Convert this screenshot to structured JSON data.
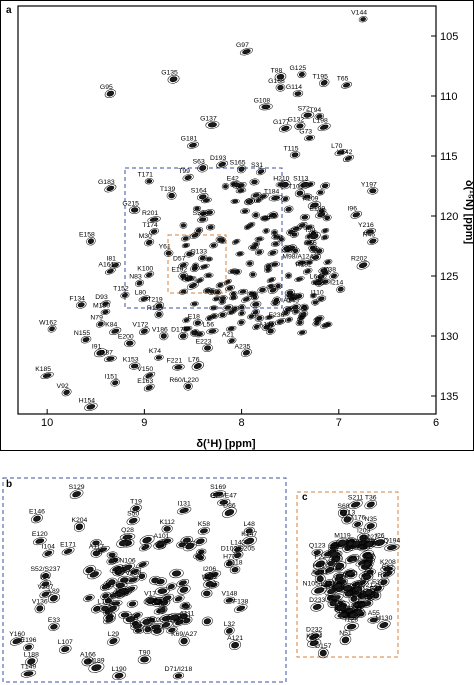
{
  "chart_data": [
    {
      "panel": "a",
      "type": "scatter",
      "xlabel": "δ(¹H) [ppm]",
      "ylabel": "δ(¹⁵N) [ppm]",
      "xlim": [
        10.3,
        6.0
      ],
      "ylim": [
        102.5,
        136.5
      ],
      "x_ticks": [
        10,
        9,
        8,
        7,
        6
      ],
      "y_ticks": [
        105,
        110,
        115,
        120,
        125,
        130,
        135
      ],
      "grid": false,
      "peaks": [
        {
          "label": "V144",
          "x": 6.75,
          "y": 103.6
        },
        {
          "label": "G97",
          "x": 7.95,
          "y": 106.3
        },
        {
          "label": "G125",
          "x": 7.38,
          "y": 108.2
        },
        {
          "label": "T88",
          "x": 7.6,
          "y": 108.4
        },
        {
          "label": "T195",
          "x": 7.15,
          "y": 108.9
        },
        {
          "label": "T65",
          "x": 6.92,
          "y": 109.1
        },
        {
          "label": "G135",
          "x": 8.7,
          "y": 108.6
        },
        {
          "label": "G168",
          "x": 7.6,
          "y": 109.3
        },
        {
          "label": "G114",
          "x": 7.42,
          "y": 109.8
        },
        {
          "label": "G95",
          "x": 9.35,
          "y": 109.8
        },
        {
          "label": "G108",
          "x": 7.75,
          "y": 110.9
        },
        {
          "label": "S72",
          "x": 7.32,
          "y": 111.6
        },
        {
          "label": "T94",
          "x": 7.2,
          "y": 111.7
        },
        {
          "label": "G137",
          "x": 8.3,
          "y": 112.4
        },
        {
          "label": "G177",
          "x": 7.55,
          "y": 112.7
        },
        {
          "label": "G132",
          "x": 7.4,
          "y": 112.5
        },
        {
          "label": "L198",
          "x": 7.15,
          "y": 112.6
        },
        {
          "label": "G73",
          "x": 7.3,
          "y": 113.5
        },
        {
          "label": "G181",
          "x": 8.5,
          "y": 114.1
        },
        {
          "label": "T115",
          "x": 7.45,
          "y": 114.9
        },
        {
          "label": "L70",
          "x": 6.98,
          "y": 114.7
        },
        {
          "label": "Y142",
          "x": 6.9,
          "y": 115.2
        },
        {
          "label": "D193",
          "x": 8.2,
          "y": 115.7
        },
        {
          "label": "S63",
          "x": 8.4,
          "y": 116.0
        },
        {
          "label": "S165",
          "x": 8.0,
          "y": 116.1
        },
        {
          "label": "S31",
          "x": 7.8,
          "y": 116.3
        },
        {
          "label": "T99",
          "x": 8.55,
          "y": 116.8
        },
        {
          "label": "T171",
          "x": 8.95,
          "y": 117.1
        },
        {
          "label": "E42",
          "x": 8.05,
          "y": 117.4
        },
        {
          "label": "H210",
          "x": 7.55,
          "y": 117.4
        },
        {
          "label": "S113",
          "x": 7.35,
          "y": 117.4
        },
        {
          "label": "G183",
          "x": 9.35,
          "y": 117.7
        },
        {
          "label": "T109",
          "x": 7.4,
          "y": 118.1
        },
        {
          "label": "Y197",
          "x": 6.65,
          "y": 117.9
        },
        {
          "label": "T139",
          "x": 8.72,
          "y": 118.3
        },
        {
          "label": "S164",
          "x": 8.4,
          "y": 118.4
        },
        {
          "label": "T184",
          "x": 7.65,
          "y": 118.5
        },
        {
          "label": "K209",
          "x": 7.25,
          "y": 119.1
        },
        {
          "label": "G215",
          "x": 9.1,
          "y": 119.5
        },
        {
          "label": "E199",
          "x": 7.18,
          "y": 119.9
        },
        {
          "label": "I96",
          "x": 6.82,
          "y": 119.9
        },
        {
          "label": "R201",
          "x": 8.9,
          "y": 120.3
        },
        {
          "label": "S53",
          "x": 8.4,
          "y": 120.3
        },
        {
          "label": "T174",
          "x": 8.9,
          "y": 121.3
        },
        {
          "label": "Y216",
          "x": 6.68,
          "y": 121.3
        },
        {
          "label": "I59",
          "x": 7.25,
          "y": 121.7
        },
        {
          "label": "M30",
          "x": 8.95,
          "y": 122.2
        },
        {
          "label": "R46",
          "x": 6.65,
          "y": 122.1
        },
        {
          "label": "E158",
          "x": 9.55,
          "y": 122.1
        },
        {
          "label": "Y61",
          "x": 8.75,
          "y": 123.1
        },
        {
          "label": "D66",
          "x": 7.25,
          "y": 122.8
        },
        {
          "label": "Q133",
          "x": 8.4,
          "y": 123.5
        },
        {
          "label": "M98/A124",
          "x": 7.38,
          "y": 123.9
        },
        {
          "label": "I81",
          "x": 9.3,
          "y": 124.1
        },
        {
          "label": "D57",
          "x": 8.6,
          "y": 124.1
        },
        {
          "label": "R202",
          "x": 6.75,
          "y": 124.1
        },
        {
          "label": "A161",
          "x": 9.35,
          "y": 124.6
        },
        {
          "label": "R182",
          "x": 7.32,
          "y": 124.6
        },
        {
          "label": "K100",
          "x": 8.95,
          "y": 124.9
        },
        {
          "label": "E192",
          "x": 8.6,
          "y": 125.0
        },
        {
          "label": "Y38",
          "x": 7.05,
          "y": 125.0
        },
        {
          "label": "N83",
          "x": 9.05,
          "y": 125.6
        },
        {
          "label": "F170",
          "x": 8.5,
          "y": 125.8
        },
        {
          "label": "L64",
          "x": 7.2,
          "y": 125.6
        },
        {
          "label": "I214",
          "x": 6.98,
          "y": 126.1
        },
        {
          "label": "T152",
          "x": 9.2,
          "y": 126.6
        },
        {
          "label": "L80",
          "x": 9.0,
          "y": 126.9
        },
        {
          "label": "I110",
          "x": 7.18,
          "y": 126.9
        },
        {
          "label": "F134",
          "x": 9.65,
          "y": 127.4
        },
        {
          "label": "D93",
          "x": 9.4,
          "y": 127.3
        },
        {
          "label": "T219",
          "x": 8.85,
          "y": 127.5
        },
        {
          "label": "A145",
          "x": 7.45,
          "y": 127.6
        },
        {
          "label": "M180",
          "x": 9.4,
          "y": 128.0
        },
        {
          "label": "R173",
          "x": 8.85,
          "y": 128.2
        },
        {
          "label": "E18",
          "x": 8.45,
          "y": 128.9
        },
        {
          "label": "E236",
          "x": 7.6,
          "y": 128.8
        },
        {
          "label": "N79",
          "x": 9.45,
          "y": 129.0
        },
        {
          "label": "L56",
          "x": 8.3,
          "y": 129.6
        },
        {
          "label": "A141",
          "x": 7.7,
          "y": 129.6
        },
        {
          "label": "W162",
          "x": 9.95,
          "y": 129.4
        },
        {
          "label": "K84",
          "x": 9.3,
          "y": 129.6
        },
        {
          "label": "V172",
          "x": 9.0,
          "y": 129.6
        },
        {
          "label": "V186",
          "x": 8.8,
          "y": 130.0
        },
        {
          "label": "D175",
          "x": 8.6,
          "y": 130.0
        },
        {
          "label": "A21",
          "x": 8.1,
          "y": 130.4
        },
        {
          "label": "N155",
          "x": 9.6,
          "y": 130.3
        },
        {
          "label": "E200",
          "x": 9.15,
          "y": 130.6
        },
        {
          "label": "E223",
          "x": 8.35,
          "y": 131.0
        },
        {
          "label": "A235",
          "x": 7.95,
          "y": 131.4
        },
        {
          "label": "I91",
          "x": 9.45,
          "y": 131.4
        },
        {
          "label": "I187",
          "x": 9.35,
          "y": 131.9
        },
        {
          "label": "K74",
          "x": 8.85,
          "y": 131.8
        },
        {
          "label": "K153",
          "x": 9.1,
          "y": 132.5
        },
        {
          "label": "F221",
          "x": 8.65,
          "y": 132.6
        },
        {
          "label": "L76",
          "x": 8.45,
          "y": 132.5
        },
        {
          "label": "V150",
          "x": 8.95,
          "y": 133.3
        },
        {
          "label": "K185",
          "x": 10.0,
          "y": 133.3
        },
        {
          "label": "I151",
          "x": 9.3,
          "y": 133.9
        },
        {
          "label": "R60/L220",
          "x": 8.55,
          "y": 134.2
        },
        {
          "label": "E163",
          "x": 8.95,
          "y": 134.3
        },
        {
          "label": "V92",
          "x": 9.8,
          "y": 134.7
        },
        {
          "label": "H154",
          "x": 9.55,
          "y": 135.9
        }
      ]
    },
    {
      "panel": "b",
      "type": "scatter",
      "peaks": [
        {
          "label": "S129",
          "x": 0.26,
          "y": 0.05
        },
        {
          "label": "S169",
          "x": 0.76,
          "y": 0.05
        },
        {
          "label": "E75/E47",
          "x": 0.78,
          "y": 0.09
        },
        {
          "label": "T19",
          "x": 0.47,
          "y": 0.12
        },
        {
          "label": "I131",
          "x": 0.64,
          "y": 0.13
        },
        {
          "label": "D86",
          "x": 0.8,
          "y": 0.14
        },
        {
          "label": "E146",
          "x": 0.12,
          "y": 0.17
        },
        {
          "label": "S50",
          "x": 0.46,
          "y": 0.18
        },
        {
          "label": "K204",
          "x": 0.27,
          "y": 0.21
        },
        {
          "label": "K112",
          "x": 0.58,
          "y": 0.22
        },
        {
          "label": "K58",
          "x": 0.71,
          "y": 0.23
        },
        {
          "label": "L48",
          "x": 0.87,
          "y": 0.23
        },
        {
          "label": "Q28",
          "x": 0.44,
          "y": 0.26
        },
        {
          "label": "E120",
          "x": 0.13,
          "y": 0.28
        },
        {
          "label": "A101",
          "x": 0.56,
          "y": 0.29
        },
        {
          "label": "K147",
          "x": 0.87,
          "y": 0.28
        },
        {
          "label": "E171",
          "x": 0.23,
          "y": 0.33
        },
        {
          "label": "L143",
          "x": 0.83,
          "y": 0.32
        },
        {
          "label": "I104",
          "x": 0.16,
          "y": 0.34
        },
        {
          "label": "A117",
          "x": 0.33,
          "y": 0.34
        },
        {
          "label": "D102/E205",
          "x": 0.83,
          "y": 0.35
        },
        {
          "label": "H77",
          "x": 0.8,
          "y": 0.39
        },
        {
          "label": "N106",
          "x": 0.44,
          "y": 0.41
        },
        {
          "label": "F118",
          "x": 0.82,
          "y": 0.42
        },
        {
          "label": "S52/S237",
          "x": 0.15,
          "y": 0.45
        },
        {
          "label": "I206",
          "x": 0.73,
          "y": 0.45
        },
        {
          "label": "V230",
          "x": 0.46,
          "y": 0.47
        },
        {
          "label": "I34",
          "x": 0.15,
          "y": 0.49
        },
        {
          "label": "V222",
          "x": 0.73,
          "y": 0.49
        },
        {
          "label": "V207",
          "x": 0.15,
          "y": 0.54
        },
        {
          "label": "L89",
          "x": 0.18,
          "y": 0.56
        },
        {
          "label": "V17",
          "x": 0.52,
          "y": 0.57
        },
        {
          "label": "V148",
          "x": 0.8,
          "y": 0.57
        },
        {
          "label": "V136",
          "x": 0.13,
          "y": 0.61
        },
        {
          "label": "L103",
          "x": 0.36,
          "y": 0.61
        },
        {
          "label": "F138",
          "x": 0.84,
          "y": 0.61
        },
        {
          "label": "A111",
          "x": 0.65,
          "y": 0.67
        },
        {
          "label": "A126",
          "x": 0.54,
          "y": 0.7
        },
        {
          "label": "E33",
          "x": 0.18,
          "y": 0.7
        },
        {
          "label": "L32",
          "x": 0.8,
          "y": 0.72
        },
        {
          "label": "Y160",
          "x": 0.05,
          "y": 0.77
        },
        {
          "label": "L29",
          "x": 0.39,
          "y": 0.77
        },
        {
          "label": "K69/A27",
          "x": 0.64,
          "y": 0.77
        },
        {
          "label": "A121",
          "x": 0.82,
          "y": 0.79
        },
        {
          "label": "E196",
          "x": 0.09,
          "y": 0.8
        },
        {
          "label": "L107",
          "x": 0.22,
          "y": 0.81
        },
        {
          "label": "T90",
          "x": 0.5,
          "y": 0.86
        },
        {
          "label": "A166",
          "x": 0.3,
          "y": 0.87
        },
        {
          "label": "L188",
          "x": 0.1,
          "y": 0.87
        },
        {
          "label": "H189",
          "x": 0.33,
          "y": 0.9
        },
        {
          "label": "T149",
          "x": 0.09,
          "y": 0.93
        },
        {
          "label": "D71/I218",
          "x": 0.62,
          "y": 0.94
        },
        {
          "label": "L190",
          "x": 0.41,
          "y": 0.94
        }
      ]
    },
    {
      "panel": "c",
      "type": "scatter",
      "peaks": [
        {
          "label": "S211",
          "x": 0.58,
          "y": 0.04
        },
        {
          "label": "T36",
          "x": 0.73,
          "y": 0.04
        },
        {
          "label": "S68",
          "x": 0.46,
          "y": 0.09
        },
        {
          "label": "F213",
          "x": 0.5,
          "y": 0.13
        },
        {
          "label": "T176",
          "x": 0.6,
          "y": 0.16
        },
        {
          "label": "N35",
          "x": 0.73,
          "y": 0.17
        },
        {
          "label": "I203",
          "x": 0.66,
          "y": 0.24
        },
        {
          "label": "M119",
          "x": 0.45,
          "y": 0.27
        },
        {
          "label": "D127",
          "x": 0.72,
          "y": 0.28
        },
        {
          "label": "I26",
          "x": 0.82,
          "y": 0.27
        },
        {
          "label": "Q194",
          "x": 0.94,
          "y": 0.3
        },
        {
          "label": "Q123",
          "x": 0.2,
          "y": 0.33
        },
        {
          "label": "I49",
          "x": 0.37,
          "y": 0.34
        },
        {
          "label": "K208",
          "x": 0.9,
          "y": 0.43
        },
        {
          "label": "F22",
          "x": 0.23,
          "y": 0.4
        },
        {
          "label": "E62",
          "x": 0.9,
          "y": 0.46
        },
        {
          "label": "K41",
          "x": 0.22,
          "y": 0.45
        },
        {
          "label": "R87",
          "x": 0.86,
          "y": 0.51
        },
        {
          "label": "K191",
          "x": 0.23,
          "y": 0.49
        },
        {
          "label": "F37",
          "x": 0.8,
          "y": 0.55
        },
        {
          "label": "Q212",
          "x": 0.71,
          "y": 0.57
        },
        {
          "label": "N105/L122",
          "x": 0.22,
          "y": 0.56
        },
        {
          "label": "F44",
          "x": 0.78,
          "y": 0.59
        },
        {
          "label": "E234",
          "x": 0.7,
          "y": 0.64
        },
        {
          "label": "D233",
          "x": 0.2,
          "y": 0.66
        },
        {
          "label": "E178",
          "x": 0.45,
          "y": 0.71
        },
        {
          "label": "A55",
          "x": 0.76,
          "y": 0.74
        },
        {
          "label": "M130",
          "x": 0.86,
          "y": 0.77
        },
        {
          "label": "I128",
          "x": 0.54,
          "y": 0.78
        },
        {
          "label": "D232",
          "x": 0.17,
          "y": 0.84
        },
        {
          "label": "N51",
          "x": 0.48,
          "y": 0.86
        },
        {
          "label": "K224",
          "x": 0.17,
          "y": 0.88
        },
        {
          "label": "D157",
          "x": 0.26,
          "y": 0.94
        }
      ]
    }
  ],
  "panels": {
    "a": "a",
    "b": "b",
    "c": "c"
  }
}
